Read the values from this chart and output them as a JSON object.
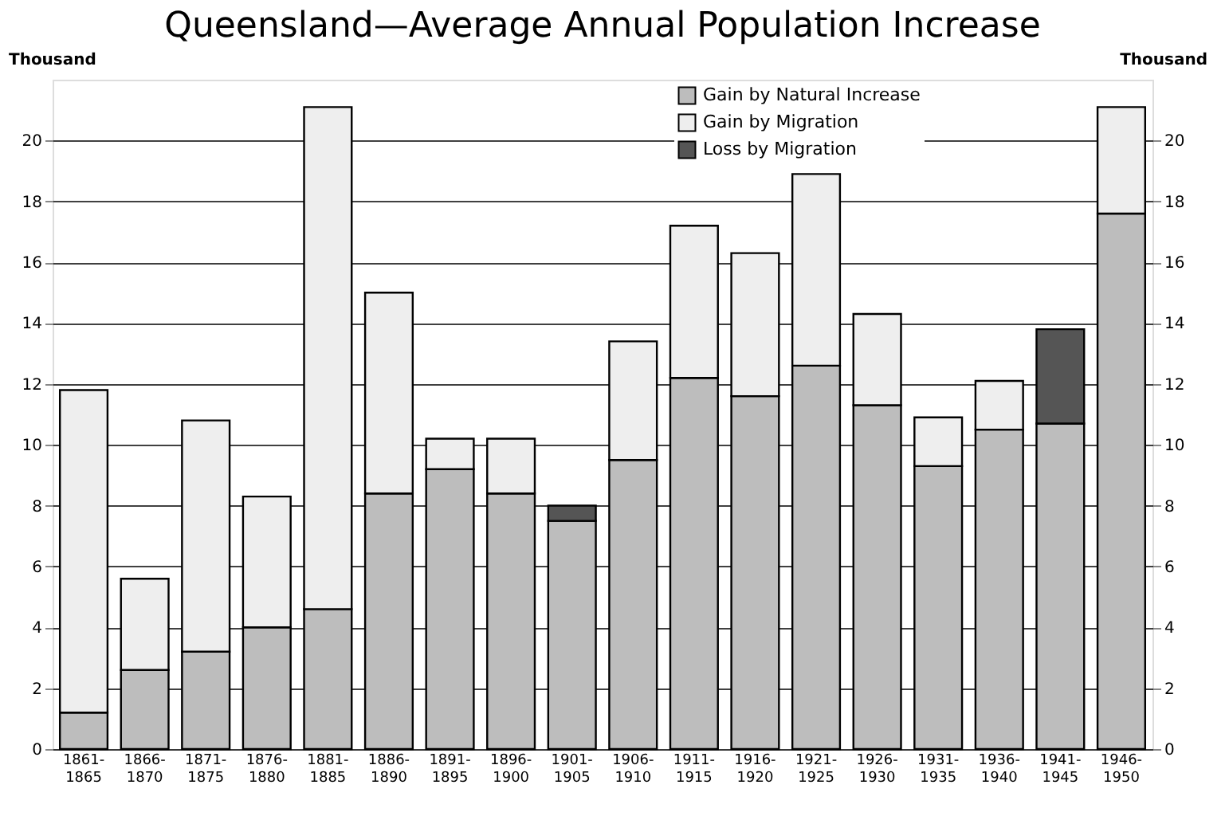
{
  "chart_data": {
    "type": "bar",
    "title": "Queensland—Average Annual Population Increase",
    "ylabel": "Thousand",
    "y2label": "Thousand",
    "categories": [
      "1861-1865",
      "1866-1870",
      "1871-1875",
      "1876-1880",
      "1881-1885",
      "1886-1890",
      "1891-1895",
      "1896-1900",
      "1901-1905",
      "1906-1910",
      "1911-1915",
      "1916-1920",
      "1921-1925",
      "1926-1930",
      "1931-1935",
      "1936-1940",
      "1941-1945",
      "1946-1950"
    ],
    "stacked": true,
    "series": [
      {
        "name": "Gain by Natural Increase",
        "color": "#bdbdbd",
        "values": [
          1.2,
          2.6,
          3.2,
          4.0,
          4.6,
          8.4,
          9.2,
          8.4,
          7.5,
          9.5,
          12.2,
          11.6,
          12.6,
          11.3,
          9.3,
          10.5,
          10.7,
          17.6
        ]
      },
      {
        "name": "Gain by Migration",
        "color": "#eeeeee",
        "values": [
          10.6,
          3.0,
          7.6,
          4.3,
          16.5,
          6.6,
          1.0,
          1.8,
          null,
          3.9,
          5.0,
          4.7,
          6.3,
          3.0,
          1.6,
          1.6,
          null,
          3.5
        ]
      },
      {
        "name": "Loss by Migration",
        "color": "#555555",
        "values": [
          null,
          null,
          null,
          null,
          null,
          null,
          null,
          null,
          0.5,
          null,
          null,
          null,
          null,
          null,
          null,
          null,
          3.1,
          null
        ]
      }
    ],
    "ylim": [
      0,
      22
    ],
    "yticks": [
      0,
      2,
      4,
      6,
      8,
      10,
      12,
      14,
      16,
      18,
      20
    ],
    "y2lim": [
      0,
      22
    ],
    "y2ticks": [
      0,
      2,
      4,
      6,
      8,
      10,
      12,
      14,
      16,
      18,
      20
    ],
    "grid": "y",
    "legend": "top right"
  }
}
